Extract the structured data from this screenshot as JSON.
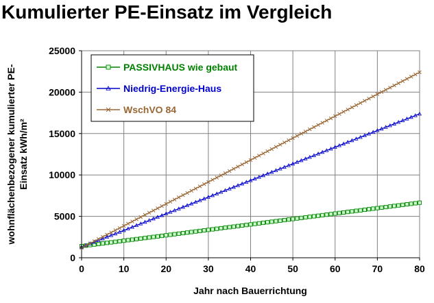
{
  "chart_data": {
    "type": "line",
    "title": "Kumulierter PE-Einsatz im Vergleich",
    "xlabel": "Jahr nach Bauerrichtung",
    "ylabel_line1": "wohnflächenbezogener kumulierter PE-",
    "ylabel_line2": "Einsatz kWh/m²",
    "xlim": [
      0,
      80
    ],
    "ylim": [
      0,
      25000
    ],
    "xticks": [
      0,
      10,
      20,
      30,
      40,
      50,
      60,
      70,
      80
    ],
    "yticks": [
      0,
      5000,
      10000,
      15000,
      20000,
      25000
    ],
    "xtick_labels": [
      "0",
      "10",
      "20",
      "30",
      "40",
      "50",
      "60",
      "70",
      "80"
    ],
    "ytick_labels": [
      "0",
      "5000",
      "10000",
      "15000",
      "20000",
      "25000"
    ],
    "grid": true,
    "legend_position": "top-left",
    "series": [
      {
        "name": "PASSIVHAUS wie gebaut",
        "color": "#008000",
        "marker": "square",
        "marker_fill": "#ccffcc",
        "start": 1400,
        "slope": 65.6
      },
      {
        "name": "Niedrig-Energie-Haus",
        "color": "#0000cc",
        "marker": "triangle",
        "start": 1300,
        "slope": 201
      },
      {
        "name": "WschVO 84",
        "color": "#996633",
        "marker": "x",
        "start": 1200,
        "slope": 265
      }
    ]
  }
}
